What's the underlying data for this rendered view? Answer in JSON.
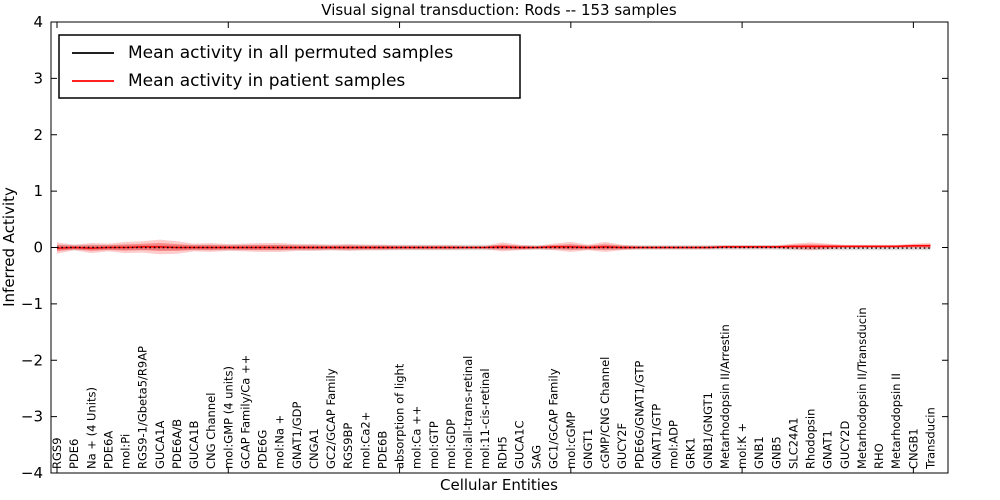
{
  "chart_data": {
    "type": "line",
    "title": "Visual signal transduction: Rods -- 153 samples",
    "xlabel": "Cellular Entities",
    "ylabel": "Inferred Activity",
    "ylim": [
      -4,
      4
    ],
    "y_tick_labels": [
      "4",
      "3",
      "2",
      "1",
      "0",
      "−1",
      "−2",
      "−3",
      "−4"
    ],
    "y_tick_values": [
      4,
      3,
      2,
      1,
      0,
      -1,
      -2,
      -3,
      -4
    ],
    "x_tick_positions": [
      0,
      10,
      20,
      30,
      40,
      50
    ],
    "grid": false,
    "legend_position": "upper left",
    "categories": [
      "RGS9",
      "PDE6",
      "Na + (4 Units)",
      "PDE6A",
      "mol:Pi",
      "RGS9-1/Gbeta5/R9AP",
      "GUCA1A",
      "PDE6A/B",
      "GUCA1B",
      "CNG Channel",
      "mol:GMP (4 units)",
      "GCAP Family/Ca ++",
      "PDE6G",
      "mol:Na +",
      "GNAT1/GDP",
      "CNGA1",
      "GC2/GCAP Family",
      "RGS9BP",
      "mol:Ca2+",
      "PDE6B",
      "absorption of light",
      "mol:Ca ++",
      "mol:GTP",
      "mol:GDP",
      "mol:all-trans-retinal",
      "mol:11-cis-retinal",
      "RDH5",
      "GUCA1C",
      "SAG",
      "GC1/GCAP Family",
      "mol:cGMP",
      "GNGT1",
      "cGMP/CNG Channel",
      "GUCY2F",
      "PDE6G/GNAT1/GTP",
      "GNAT1/GTP",
      "mol:ADP",
      "GRK1",
      "GNB1/GNGT1",
      "Metarhodopsin II/Arrestin",
      "mol:K +",
      "GNB1",
      "GNB5",
      "SLC24A1",
      "Rhodopsin",
      "GNAT1",
      "GUCY2D",
      "Metarhodopsin II/Transducin",
      "RHO",
      "Metarhodopsin II",
      "CNGB1",
      "Transducin"
    ],
    "series": [
      {
        "name": "Mean activity in all permuted samples",
        "color": "#000000",
        "style": "dotted",
        "band_color": "rgba(0,0,0,0.13)",
        "values": [
          0,
          0,
          0,
          0,
          0,
          0,
          0,
          0,
          0,
          0,
          0,
          0,
          0,
          0,
          0,
          0,
          0,
          0,
          0,
          0,
          0,
          0,
          0,
          0,
          0,
          0,
          0,
          0,
          0,
          0,
          0,
          0,
          0,
          0,
          0,
          0,
          0,
          0,
          0,
          0,
          0,
          0,
          0,
          -0.01,
          -0.01,
          -0.01,
          -0.01,
          -0.01,
          -0.01,
          -0.01,
          -0.01,
          -0.01
        ],
        "band": [
          0.05,
          0.05,
          0.05,
          0.05,
          0.05,
          0.05,
          0.05,
          0.05,
          0.05,
          0.05,
          0.05,
          0.05,
          0.05,
          0.05,
          0.05,
          0.05,
          0.05,
          0.05,
          0.05,
          0.05,
          0.05,
          0.05,
          0.05,
          0.05,
          0.05,
          0.05,
          0.04,
          0.04,
          0.04,
          0.04,
          0.04,
          0.04,
          0.04,
          0.04,
          0.04,
          0.04,
          0.04,
          0.04,
          0.04,
          0.04,
          0.04,
          0.04,
          0.04,
          0.04,
          0.04,
          0.04,
          0.04,
          0.04,
          0.04,
          0.04,
          0.04,
          0.04
        ]
      },
      {
        "name": "Mean activity in patient samples",
        "color": "#ff0000",
        "style": "solid",
        "band_color": "rgba(255,0,0,0.20)",
        "band_color_inner": "rgba(255,0,0,0.30)",
        "values": [
          -0.01,
          0,
          -0.01,
          0,
          0,
          0.01,
          0.01,
          0,
          0,
          0,
          0,
          0,
          0,
          0,
          0,
          0,
          0,
          0,
          0,
          0,
          0,
          0,
          0,
          0,
          0,
          0,
          0.01,
          0,
          0,
          0.01,
          0.01,
          0,
          0.01,
          0,
          0,
          0,
          0,
          0,
          0,
          0.01,
          0.01,
          0.01,
          0.01,
          0.02,
          0.02,
          0.02,
          0.02,
          0.02,
          0.02,
          0.02,
          0.03,
          0.03
        ],
        "band": [
          0.1,
          0.05,
          0.09,
          0.07,
          0.1,
          0.1,
          0.13,
          0.11,
          0.07,
          0.08,
          0.06,
          0.07,
          0.08,
          0.08,
          0.06,
          0.06,
          0.05,
          0.06,
          0.05,
          0.05,
          0.04,
          0.04,
          0.04,
          0.04,
          0.03,
          0.03,
          0.08,
          0.05,
          0.03,
          0.06,
          0.09,
          0.05,
          0.09,
          0.05,
          0.03,
          0.03,
          0.03,
          0.03,
          0.03,
          0.03,
          0.03,
          0.03,
          0.03,
          0.05,
          0.07,
          0.05,
          0.03,
          0.03,
          0.03,
          0.03,
          0.04,
          0.05
        ]
      }
    ]
  }
}
